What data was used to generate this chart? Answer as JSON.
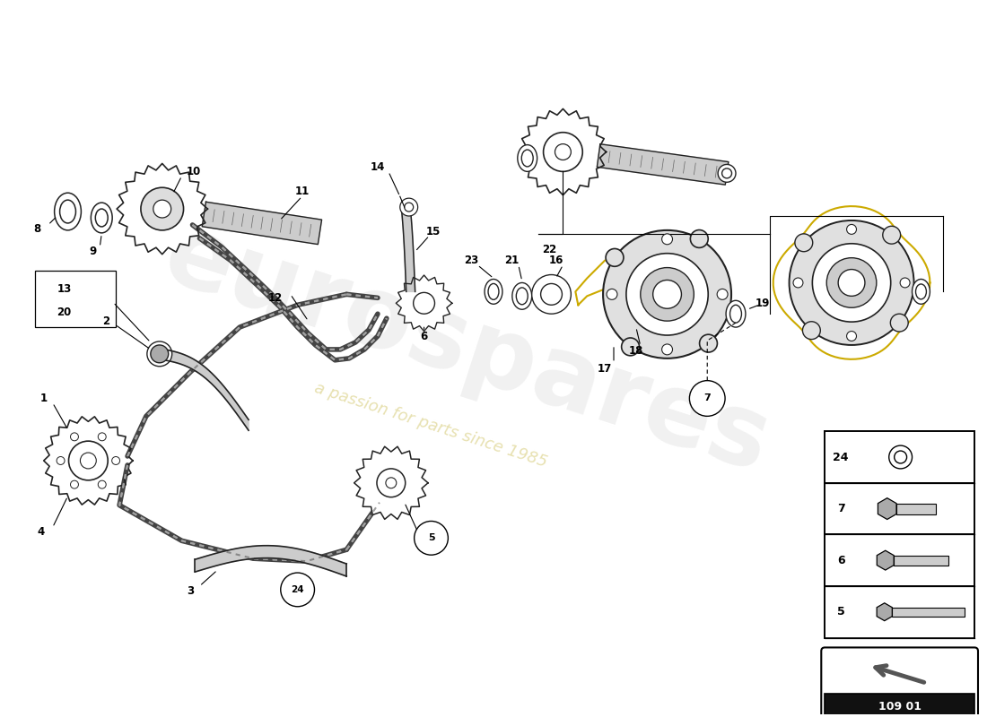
{
  "bg_color": "#ffffff",
  "watermark_text1": "eurospares",
  "watermark_text2": "a passion for parts since 1985",
  "diagram_box_color": "#111111",
  "diagram_box_num": "109 01",
  "part_color": "#222222",
  "chain_color": "#444444",
  "gasket_color": "#ccaa00",
  "pump_fill": "#cccccc",
  "label_color": "#000000",
  "figsize": [
    11.0,
    8.0
  ],
  "dpi": 100,
  "xlim": [
    0,
    11
  ],
  "ylim": [
    0,
    8
  ]
}
